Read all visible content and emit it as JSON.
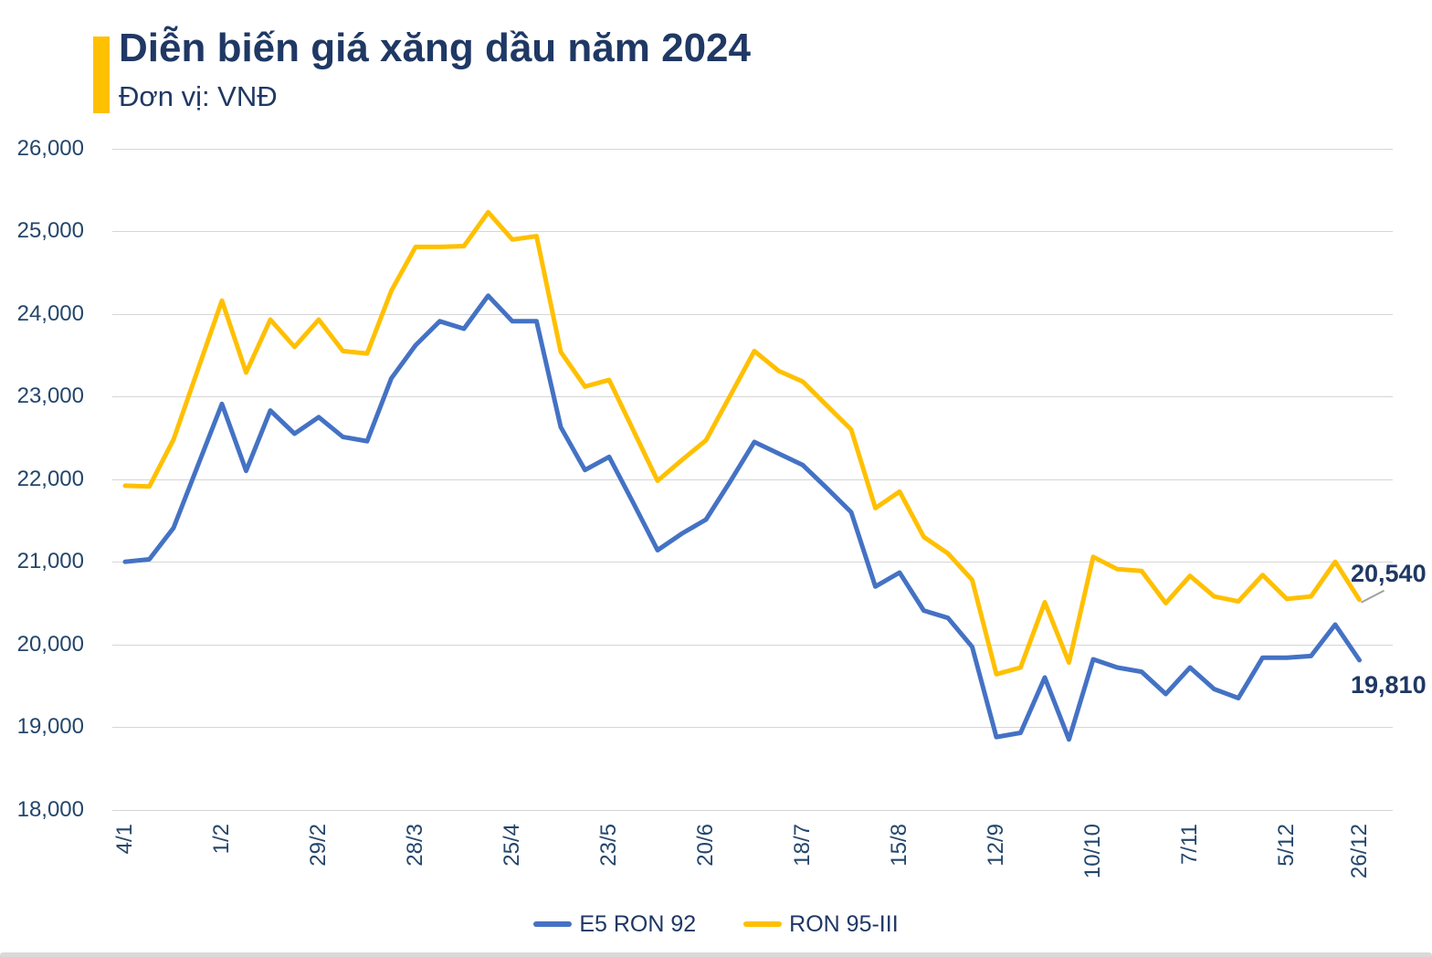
{
  "header": {
    "title": "Diễn biến giá xăng dầu năm 2024",
    "subtitle": "Đơn vị: VNĐ",
    "accent_color": "#FFC000",
    "title_color": "#1F3864"
  },
  "chart_data": {
    "type": "line",
    "title": "Diễn biến giá xăng dầu năm 2024",
    "unit_label": "Đơn vị: VNĐ",
    "ylim": [
      18000,
      26000
    ],
    "y_tick_step": 1000,
    "y_tick_labels": [
      "26,000",
      "25,000",
      "24,000",
      "23,000",
      "22,000",
      "21,000",
      "20,000",
      "19,000",
      "18,000"
    ],
    "x_tick_labels": [
      "4/1",
      "1/2",
      "29/2",
      "28/3",
      "25/4",
      "23/5",
      "20/6",
      "18/7",
      "15/8",
      "12/9",
      "10/10",
      "7/11",
      "5/12",
      "26/12"
    ],
    "x_tick_indices": [
      0,
      4,
      8,
      12,
      16,
      20,
      24,
      28,
      32,
      36,
      40,
      44,
      48,
      51
    ],
    "grid": "horizontal-only",
    "legend_position": "bottom-center",
    "gridline_color": "#D6D6D6",
    "series": [
      {
        "name": "E5 RON 92",
        "color": "#4472C4",
        "end_label": "19,810",
        "end_label_side": "below",
        "values": [
          21000,
          21030,
          21410,
          22160,
          22910,
          22100,
          22830,
          22550,
          22750,
          22510,
          22460,
          23220,
          23620,
          23910,
          23820,
          24220,
          23910,
          23910,
          22630,
          22110,
          22270,
          21710,
          21140,
          21340,
          21510,
          21970,
          22450,
          22310,
          22170,
          21890,
          21600,
          20700,
          20870,
          20410,
          20320,
          19970,
          18880,
          18930,
          19600,
          18850,
          19820,
          19720,
          19670,
          19400,
          19720,
          19460,
          19350,
          19840,
          19840,
          19860,
          20240,
          19810
        ]
      },
      {
        "name": "RON 95-III",
        "color": "#FFC000",
        "end_label": "20,540",
        "end_label_side": "above",
        "values": [
          21920,
          21910,
          22480,
          23320,
          24160,
          23290,
          23930,
          23600,
          23930,
          23550,
          23520,
          24280,
          24810,
          24810,
          24820,
          25230,
          24900,
          24940,
          23540,
          23120,
          23200,
          22590,
          21980,
          22230,
          22470,
          23010,
          23550,
          23310,
          23180,
          22890,
          22600,
          21650,
          21850,
          21300,
          21100,
          20780,
          19640,
          19720,
          20510,
          19780,
          21060,
          20910,
          20890,
          20500,
          20830,
          20580,
          20520,
          20840,
          20550,
          20580,
          21000,
          20540
        ]
      }
    ]
  }
}
